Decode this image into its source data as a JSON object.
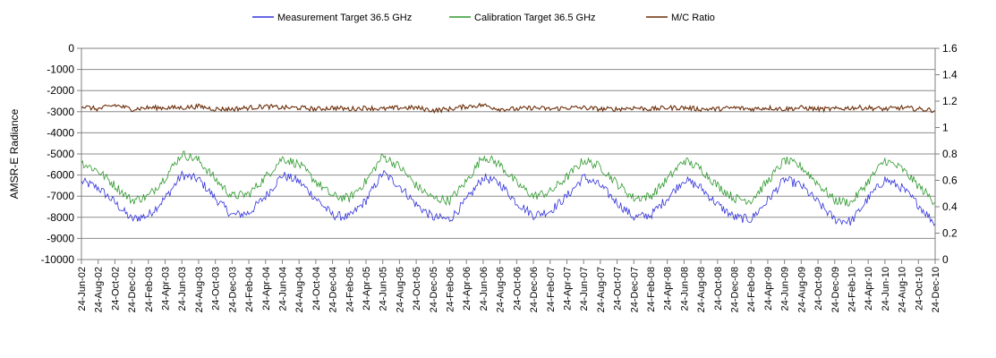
{
  "chart_data": {
    "type": "line",
    "title": "",
    "ylabel": "AMSR-E Radiance",
    "y2label": "",
    "ylim": [
      -10000,
      0
    ],
    "y2lim": [
      0,
      1.6
    ],
    "yticks": [
      "0",
      "-1000",
      "-2000",
      "-3000",
      "-4000",
      "-5000",
      "-6000",
      "-7000",
      "-8000",
      "-9000",
      "-10000"
    ],
    "y2ticks": [
      "1.6",
      "1.4",
      "1.2",
      "1",
      "0.8",
      "0.6",
      "0.4",
      "0.2",
      "0"
    ],
    "grid": true,
    "legend_placement": "top",
    "x_range": [
      "2002-06-24",
      "2010-12-24"
    ],
    "categories": [
      "24-Jun-02",
      "24-Aug-02",
      "24-Oct-02",
      "24-Dec-02",
      "24-Feb-03",
      "24-Apr-03",
      "24-Jun-03",
      "24-Aug-03",
      "24-Oct-03",
      "24-Dec-03",
      "24-Feb-04",
      "24-Apr-04",
      "24-Jun-04",
      "24-Aug-04",
      "24-Oct-04",
      "24-Dec-04",
      "24-Feb-05",
      "24-Apr-05",
      "24-Jun-05",
      "24-Aug-05",
      "24-Oct-05",
      "24-Dec-05",
      "24-Feb-06",
      "24-Apr-06",
      "24-Jun-06",
      "24-Aug-06",
      "24-Oct-06",
      "24-Dec-06",
      "24-Feb-07",
      "24-Apr-07",
      "24-Jun-07",
      "24-Aug-07",
      "24-Oct-07",
      "24-Dec-07",
      "24-Feb-08",
      "24-Apr-08",
      "24-Jun-08",
      "24-Aug-08",
      "24-Oct-08",
      "24-Dec-08",
      "24-Feb-09",
      "24-Apr-09",
      "24-Jun-09",
      "24-Aug-09",
      "24-Oct-09",
      "24-Dec-09",
      "24-Feb-10",
      "24-Apr-10",
      "24-Jun-10",
      "24-Aug-10",
      "24-Oct-10",
      "24-Dec-10"
    ],
    "series": [
      {
        "name": "Measurement Target 36.5 GHz",
        "axis": "left",
        "color": "#3333dd",
        "values": [
          -6300,
          -6600,
          -7300,
          -8100,
          -7900,
          -7100,
          -6000,
          -6200,
          -7100,
          -7900,
          -7800,
          -7000,
          -6000,
          -6300,
          -7100,
          -7900,
          -8000,
          -7200,
          -5900,
          -6500,
          -7400,
          -8000,
          -8100,
          -7200,
          -6100,
          -6400,
          -7300,
          -7900,
          -7700,
          -7000,
          -6100,
          -6500,
          -7300,
          -8000,
          -7900,
          -7100,
          -6200,
          -6600,
          -7400,
          -8000,
          -8100,
          -7200,
          -6200,
          -6500,
          -7300,
          -8100,
          -8200,
          -7100,
          -6200,
          -6600,
          -7400,
          -8300
        ]
      },
      {
        "name": "Calibration Target 36.5 GHz",
        "axis": "left",
        "color": "#2e9a2e",
        "values": [
          -5400,
          -5800,
          -6500,
          -7200,
          -7000,
          -6100,
          -5000,
          -5300,
          -6200,
          -7000,
          -6900,
          -6100,
          -5200,
          -5500,
          -6300,
          -7000,
          -7100,
          -6300,
          -5100,
          -5600,
          -6500,
          -7100,
          -7200,
          -6300,
          -5100,
          -5500,
          -6400,
          -7000,
          -6800,
          -6100,
          -5300,
          -5600,
          -6400,
          -7100,
          -7000,
          -6200,
          -5300,
          -5700,
          -6500,
          -7100,
          -7200,
          -6300,
          -5300,
          -5600,
          -6400,
          -7200,
          -7300,
          -6300,
          -5300,
          -5700,
          -6500,
          -7300
        ]
      },
      {
        "name": "M/C Ratio",
        "axis": "right",
        "color": "#6b2d08",
        "values": [
          1.16,
          1.14,
          1.17,
          1.14,
          1.15,
          1.15,
          1.15,
          1.16,
          1.14,
          1.14,
          1.15,
          1.16,
          1.15,
          1.15,
          1.14,
          1.15,
          1.14,
          1.15,
          1.14,
          1.15,
          1.15,
          1.13,
          1.14,
          1.16,
          1.17,
          1.14,
          1.14,
          1.15,
          1.14,
          1.15,
          1.15,
          1.14,
          1.14,
          1.15,
          1.14,
          1.15,
          1.15,
          1.14,
          1.14,
          1.15,
          1.14,
          1.15,
          1.14,
          1.15,
          1.14,
          1.14,
          1.15,
          1.15,
          1.14,
          1.15,
          1.14,
          1.13
        ]
      }
    ]
  }
}
